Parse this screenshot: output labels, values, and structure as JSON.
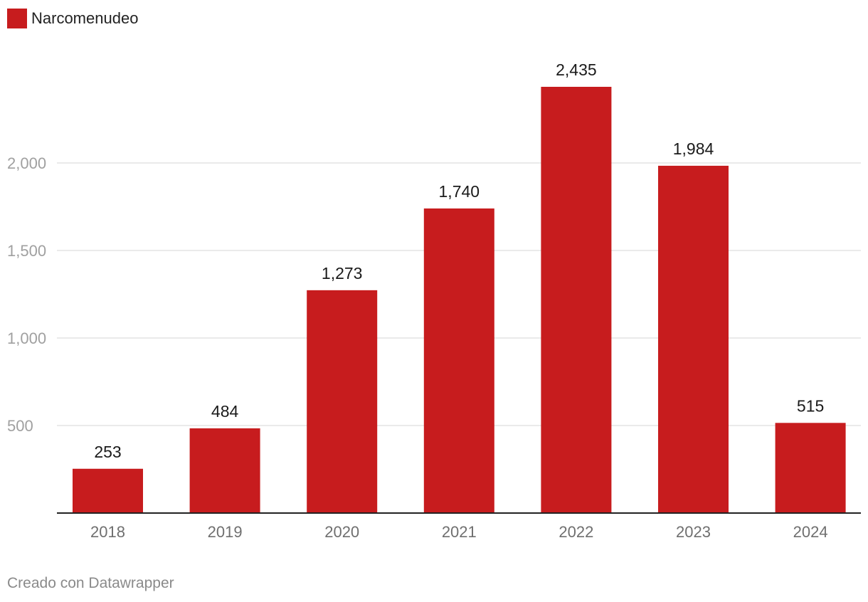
{
  "legend": {
    "label": "Narcomenudeo",
    "color": "#c71c1e"
  },
  "credit": "Creado con Datawrapper",
  "chart_data": {
    "type": "bar",
    "categories": [
      "2018",
      "2019",
      "2020",
      "2021",
      "2022",
      "2023",
      "2024"
    ],
    "series": [
      {
        "name": "Narcomenudeo",
        "values": [
          253,
          484,
          1273,
          1740,
          2435,
          1984,
          515
        ],
        "color": "#c71c1e"
      }
    ],
    "value_labels": [
      "253",
      "484",
      "1,273",
      "1,740",
      "2,435",
      "1,984",
      "515"
    ],
    "y_ticks": [
      500,
      1000,
      1500,
      2000
    ],
    "y_tick_labels": [
      "500",
      "1,000",
      "1,500",
      "2,000"
    ],
    "ylim": [
      0,
      2435
    ],
    "grid": true,
    "legend_position": "top-left",
    "title": "",
    "xlabel": "",
    "ylabel": ""
  }
}
